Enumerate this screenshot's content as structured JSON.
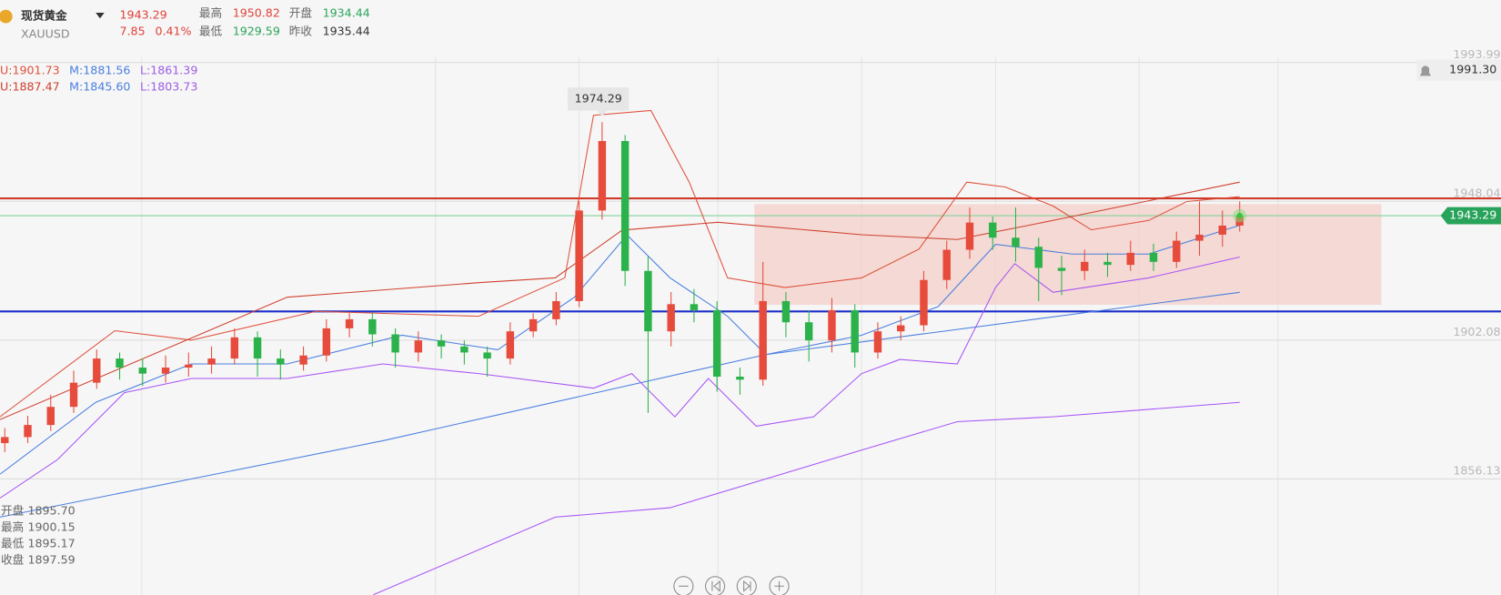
{
  "header": {
    "name": "现货黄金",
    "symbol": "XAUUSD",
    "price": "1943.29",
    "change": "7.85",
    "change_pct": "0.41%",
    "stats": [
      {
        "label": "最高",
        "value": "1950.82"
      },
      {
        "label": "开盘",
        "value": "1934.44"
      },
      {
        "label": "最低",
        "value": "1929.59"
      },
      {
        "label": "昨收",
        "value": "1935.44"
      }
    ]
  },
  "indicators": [
    [
      {
        "text": "U:1901.73",
        "color": "#e0503c"
      },
      {
        "text": "M:1881.56",
        "color": "#4a7fe0"
      },
      {
        "text": "L:1861.39",
        "color": "#9b5de5"
      }
    ],
    [
      {
        "text": "U:1887.47",
        "color": "#d0402e"
      },
      {
        "text": "M:1845.60",
        "color": "#4a7fe0"
      },
      {
        "text": "L:1803.73",
        "color": "#9b5de5"
      }
    ]
  ],
  "ohlc_info": [
    {
      "label": "开盘",
      "value": "1895.70"
    },
    {
      "label": "最高",
      "value": "1900.15"
    },
    {
      "label": "最低",
      "value": "1895.17"
    },
    {
      "label": "收盘",
      "value": "1897.59"
    }
  ],
  "alert_label": "1991.30",
  "chart_data": {
    "type": "candlestick",
    "xlim": [
      0,
      1568
    ],
    "ylim": [
      1817.8,
      2014.6
    ],
    "yticks": [
      {
        "value": 1993.99,
        "label": "1993.99"
      },
      1948.04,
      1902.08,
      1856.13
    ],
    "up_color": "#e64b3c",
    "down_color": "#2cb24a",
    "candles": {
      "x": [
        5,
        29,
        53,
        77,
        101,
        125,
        149,
        173,
        197,
        221,
        245,
        269,
        293,
        317,
        341,
        365,
        389,
        413,
        437,
        461,
        485,
        509,
        533,
        557,
        581,
        605,
        629,
        653,
        677,
        701,
        725,
        749,
        773,
        797,
        821,
        845,
        869,
        893,
        917,
        941,
        965,
        989,
        1013,
        1037,
        1061,
        1085,
        1109,
        1133,
        1157,
        1181,
        1205,
        1229,
        1253,
        1277,
        1295
      ],
      "open": [
        1868,
        1870,
        1874,
        1880,
        1888,
        1896,
        1893,
        1891,
        1893,
        1894,
        1896,
        1903,
        1896,
        1894,
        1897,
        1906,
        1909,
        1904,
        1898,
        1902,
        1900,
        1898,
        1896,
        1905,
        1909,
        1915,
        1945,
        1968,
        1925,
        1905,
        1914,
        1912,
        1890,
        1889,
        1915,
        1908,
        1902,
        1912,
        1898,
        1905,
        1907,
        1922,
        1932,
        1941,
        1936,
        1933,
        1926,
        1925,
        1928,
        1927,
        1931,
        1928,
        1935,
        1937,
        1940
      ],
      "high": [
        1873,
        1877,
        1884,
        1892,
        1899,
        1898,
        1896,
        1897,
        1898,
        1900,
        1906,
        1905,
        1899,
        1900,
        1909,
        1911,
        1911,
        1906,
        1905,
        1904,
        1902,
        1900,
        1908,
        1911,
        1918,
        1948,
        1974.29,
        1970,
        1930,
        1918,
        1919,
        1915,
        1893,
        1928,
        1918,
        1912,
        1916,
        1914,
        1908,
        1910,
        1925,
        1935,
        1946,
        1943,
        1946,
        1936,
        1930,
        1932,
        1931,
        1935,
        1934,
        1938,
        1948,
        1945,
        1948
      ],
      "low": [
        1865,
        1868,
        1872,
        1878,
        1886,
        1889,
        1887,
        1888,
        1890,
        1891,
        1894,
        1890,
        1889,
        1892,
        1895,
        1903,
        1900,
        1893,
        1895,
        1896,
        1894,
        1890,
        1894,
        1903,
        1907,
        1913,
        1942,
        1920,
        1878,
        1900,
        1908,
        1885,
        1884,
        1887,
        1903,
        1895,
        1898,
        1893,
        1896,
        1902,
        1905,
        1919,
        1929,
        1932,
        1928,
        1915,
        1917,
        1922,
        1923,
        1925,
        1925,
        1926,
        1930,
        1933,
        1938
      ],
      "close": [
        1870,
        1874,
        1880,
        1888,
        1896,
        1893,
        1891,
        1893,
        1894,
        1896,
        1903,
        1896,
        1894,
        1897,
        1906,
        1909,
        1904,
        1898,
        1902,
        1900,
        1898,
        1896,
        1905,
        1909,
        1915,
        1945,
        1968,
        1925,
        1905,
        1914,
        1912,
        1890,
        1889,
        1915,
        1908,
        1902,
        1912,
        1898,
        1905,
        1907,
        1922,
        1932,
        1941,
        1936,
        1933,
        1926,
        1925,
        1928,
        1927,
        1931,
        1928,
        1935,
        1937,
        1940,
        1943.29
      ]
    },
    "lines": [
      {
        "color": "#4a7fe0",
        "x": [
          0,
          400,
          800,
          1295
        ],
        "values": [
          1843.5,
          1868.8,
          1897.3,
          1917.9
        ]
      },
      {
        "color": "#a855f7",
        "x": [
          390,
          580,
          700,
          900,
          1000,
          1100,
          1295
        ],
        "values": [
          1817.8,
          1843.5,
          1846.6,
          1865.7,
          1875.1,
          1876.7,
          1881.5
        ]
      },
      {
        "color": "#e0503c",
        "x": [
          0,
          120,
          200,
          330,
          500,
          590,
          620,
          680,
          720,
          760,
          820,
          900,
          960,
          1010,
          1050,
          1100,
          1140,
          1200,
          1240,
          1295
        ],
        "values": [
          1876.7,
          1905.2,
          1902.1,
          1911.6,
          1910.0,
          1922.7,
          1976.5,
          1978.1,
          1954.4,
          1922.7,
          1919.5,
          1922.7,
          1932.2,
          1954.4,
          1952.8,
          1946.5,
          1938.6,
          1941.7,
          1948.0,
          1949.6
        ]
      },
      {
        "color": "#a855f7",
        "x": [
          0,
          60,
          130,
          200,
          300,
          400,
          500,
          620,
          660,
          705,
          740,
          790,
          850,
          900,
          940,
          1000,
          1040,
          1060,
          1100,
          1200,
          1295
        ],
        "values": [
          1849.8,
          1862.5,
          1884.7,
          1889.4,
          1889.4,
          1894.2,
          1891.0,
          1886.2,
          1891.0,
          1876.7,
          1889.4,
          1873.6,
          1876.7,
          1891.0,
          1895.7,
          1894.2,
          1919.5,
          1927.4,
          1917.9,
          1922.7,
          1929.6
        ]
      },
      {
        "color": "#4a7fe0",
        "x": [
          0,
          100,
          200,
          300,
          420,
          520,
          600,
          655,
          700,
          760,
          800,
          900,
          980,
          1040,
          1080,
          1120,
          1200,
          1295
        ],
        "values": [
          1857.7,
          1881.5,
          1894.2,
          1894.2,
          1903.7,
          1898.9,
          1916.3,
          1936.9,
          1922.7,
          1910.0,
          1897.3,
          1903.7,
          1913.2,
          1933.8,
          1932.2,
          1930.6,
          1930.6,
          1940.1
        ]
      },
      {
        "color": "#d0402e",
        "x": [
          0,
          300,
          500,
          580,
          650,
          750,
          900,
          1000,
          1100,
          1295
        ],
        "values": [
          1875.8,
          1916.3,
          1921.1,
          1922.7,
          1938.5,
          1941.1,
          1937.0,
          1935.4,
          1941.7,
          1954.4
        ]
      }
    ],
    "levels": [
      {
        "value": 1949.0,
        "color": "#d03a2a"
      },
      {
        "value": 1911.6,
        "color": "#1c2fc8"
      },
      {
        "value": 1943.29,
        "color": "#7fd49a"
      }
    ],
    "zone": {
      "x0": 788,
      "x1": 1443,
      "top": 1947.1,
      "bottom": 1913.8,
      "color": "#f3cfc8"
    }
  }
}
